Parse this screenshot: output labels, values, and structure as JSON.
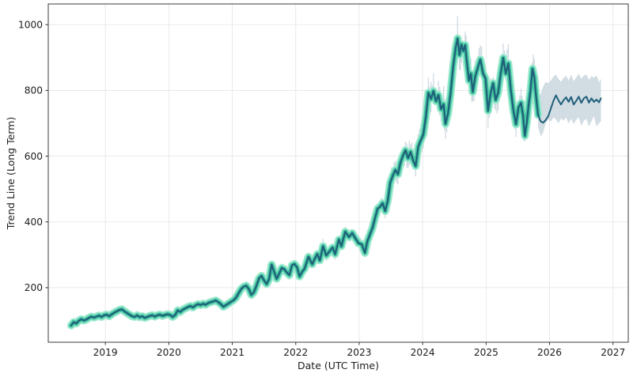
{
  "figure": {
    "background": "#ffffff"
  },
  "chart_data": {
    "type": "line",
    "title": "",
    "xlabel": "Date (UTC Time)",
    "ylabel": "Trend Line (Long Term)",
    "grid": true,
    "legend": "none",
    "xlim": [
      2018.1,
      2027.24
    ],
    "ylim": [
      34,
      1063
    ],
    "x_tick_values": [
      2019,
      2020,
      2021,
      2022,
      2023,
      2024,
      2025,
      2026,
      2027
    ],
    "x_tick_labels": [
      "2019",
      "2020",
      "2021",
      "2022",
      "2023",
      "2024",
      "2025",
      "2026",
      "2027"
    ],
    "y_tick_values": [
      200,
      400,
      600,
      800,
      1000
    ],
    "y_tick_labels": [
      "200",
      "400",
      "600",
      "800",
      "1000"
    ],
    "style": {
      "grid_color": "#e7e7e7",
      "spine_color": "#3b3b3b",
      "tick_color": "#333333",
      "tick_text_color": "#1c1c1c",
      "line_color": "#1f5f7a",
      "halo_outer_color": "#9ce9cf",
      "halo_inner_color": "#44c6a0",
      "noise_color": "#c2cfd9",
      "band_fill": "#ccd8e0"
    },
    "series": [
      {
        "name": "history",
        "role": "history",
        "x": [
          2018.46,
          2018.5,
          2018.54,
          2018.58,
          2018.62,
          2018.66,
          2018.7,
          2018.74,
          2018.78,
          2018.82,
          2018.86,
          2018.9,
          2018.94,
          2018.98,
          2019.02,
          2019.06,
          2019.1,
          2019.14,
          2019.18,
          2019.22,
          2019.26,
          2019.3,
          2019.34,
          2019.38,
          2019.42,
          2019.46,
          2019.5,
          2019.54,
          2019.58,
          2019.62,
          2019.66,
          2019.7,
          2019.74,
          2019.78,
          2019.82,
          2019.86,
          2019.9,
          2019.94,
          2019.98,
          2020.02,
          2020.06,
          2020.1,
          2020.14,
          2020.18,
          2020.22,
          2020.26,
          2020.3,
          2020.34,
          2020.38,
          2020.42,
          2020.46,
          2020.5,
          2020.54,
          2020.58,
          2020.62,
          2020.66,
          2020.7,
          2020.74,
          2020.78,
          2020.82,
          2020.86,
          2020.9,
          2020.94,
          2020.98,
          2021.02,
          2021.06,
          2021.1,
          2021.14,
          2021.18,
          2021.22,
          2021.26,
          2021.3,
          2021.34,
          2021.38,
          2021.42,
          2021.46,
          2021.5,
          2021.54,
          2021.58,
          2021.62,
          2021.66,
          2021.7,
          2021.74,
          2021.78,
          2021.82,
          2021.86,
          2021.9,
          2021.94,
          2021.98,
          2022.02,
          2022.06,
          2022.1,
          2022.14,
          2022.2,
          2022.26,
          2022.3,
          2022.34,
          2022.38,
          2022.43,
          2022.48,
          2022.53,
          2022.58,
          2022.62,
          2022.68,
          2022.72,
          2022.78,
          2022.84,
          2022.89,
          2022.94,
          2022.99,
          2023.04,
          2023.09,
          2023.13,
          2023.17,
          2023.21,
          2023.25,
          2023.29,
          2023.33,
          2023.37,
          2023.41,
          2023.45,
          2023.49,
          2023.53,
          2023.57,
          2023.61,
          2023.65,
          2023.69,
          2023.73,
          2023.77,
          2023.81,
          2023.85,
          2023.89,
          2023.93,
          2023.97,
          2024.01,
          2024.05,
          2024.09,
          2024.13,
          2024.17,
          2024.21,
          2024.25,
          2024.29,
          2024.33,
          2024.36,
          2024.4,
          2024.44,
          2024.48,
          2024.52,
          2024.55,
          2024.58,
          2024.61,
          2024.64,
          2024.67,
          2024.7,
          2024.73,
          2024.76,
          2024.79,
          2024.83,
          2024.87,
          2024.91,
          2024.95,
          2024.99,
          2025.03,
          2025.07,
          2025.11,
          2025.15,
          2025.19,
          2025.23,
          2025.27,
          2025.31,
          2025.35,
          2025.39,
          2025.43,
          2025.47,
          2025.51,
          2025.55,
          2025.58,
          2025.61,
          2025.64,
          2025.67,
          2025.7,
          2025.73,
          2025.76,
          2025.79,
          2025.82
        ],
        "y": [
          85,
          95,
          91,
          99,
          104,
          100,
          103,
          108,
          112,
          109,
          112,
          115,
          111,
          116,
          118,
          113,
          119,
          124,
          128,
          132,
          134,
          128,
          123,
          118,
          113,
          111,
          116,
          110,
          113,
          108,
          111,
          114,
          116,
          112,
          116,
          118,
          114,
          117,
          119,
          117,
          111,
          117,
          131,
          126,
          133,
          137,
          141,
          144,
          140,
          146,
          150,
          147,
          151,
          148,
          153,
          156,
          158,
          161,
          156,
          150,
          142,
          147,
          152,
          157,
          162,
          170,
          183,
          196,
          203,
          206,
          196,
          178,
          186,
          205,
          228,
          236,
          222,
          211,
          226,
          270,
          248,
          227,
          243,
          260,
          256,
          246,
          238,
          268,
          272,
          262,
          234,
          248,
          258,
          294,
          271,
          288,
          302,
          283,
          326,
          298,
          310,
          322,
          302,
          346,
          326,
          370,
          354,
          366,
          350,
          335,
          332,
          306,
          342,
          362,
          382,
          412,
          440,
          446,
          457,
          433,
          465,
          520,
          541,
          558,
          545,
          580,
          602,
          618,
          594,
          613,
          587,
          570,
          628,
          648,
          666,
          720,
          793,
          774,
          798,
          767,
          786,
          743,
          758,
          698,
          730,
          790,
          872,
          930,
          958,
          908,
          940,
          920,
          938,
          880,
          830,
          851,
          795,
          843,
          870,
          894,
          853,
          836,
          738,
          790,
          822,
          771,
          793,
          852,
          899,
          851,
          882,
          801,
          740,
          697,
          748,
          762,
          726,
          662,
          700,
          756,
          800,
          866,
          840,
          778,
          725
        ]
      },
      {
        "name": "forecast",
        "role": "forecast",
        "x": [
          2025.82,
          2025.86,
          2025.9,
          2025.94,
          2025.98,
          2026.02,
          2026.06,
          2026.1,
          2026.14,
          2026.18,
          2026.22,
          2026.26,
          2026.3,
          2026.34,
          2026.38,
          2026.42,
          2026.46,
          2026.5,
          2026.54,
          2026.58,
          2026.62,
          2026.66,
          2026.7,
          2026.74,
          2026.78,
          2026.81
        ],
        "y": [
          725,
          706,
          702,
          710,
          722,
          745,
          768,
          785,
          770,
          757,
          770,
          779,
          765,
          780,
          757,
          768,
          781,
          762,
          776,
          781,
          763,
          776,
          765,
          772,
          764,
          776
        ]
      },
      {
        "name": "forecast_band",
        "role": "band",
        "x": [
          2025.82,
          2025.86,
          2025.9,
          2025.94,
          2025.98,
          2026.02,
          2026.06,
          2026.1,
          2026.14,
          2026.18,
          2026.22,
          2026.26,
          2026.3,
          2026.34,
          2026.38,
          2026.42,
          2026.46,
          2026.5,
          2026.54,
          2026.58,
          2026.62,
          2026.66,
          2026.7,
          2026.74,
          2026.78,
          2026.81
        ],
        "upper": [
          760,
          790,
          812,
          826,
          822,
          830,
          842,
          848,
          835,
          826,
          838,
          845,
          830,
          847,
          828,
          839,
          851,
          835,
          845,
          849,
          832,
          844,
          838,
          846,
          824,
          836
        ],
        "lower": [
          688,
          660,
          672,
          700,
          712,
          705,
          718,
          712,
          700,
          715,
          708,
          718,
          700,
          714,
          698,
          710,
          718,
          692,
          708,
          714,
          690,
          706,
          722,
          690,
          700,
          707
        ]
      }
    ]
  }
}
